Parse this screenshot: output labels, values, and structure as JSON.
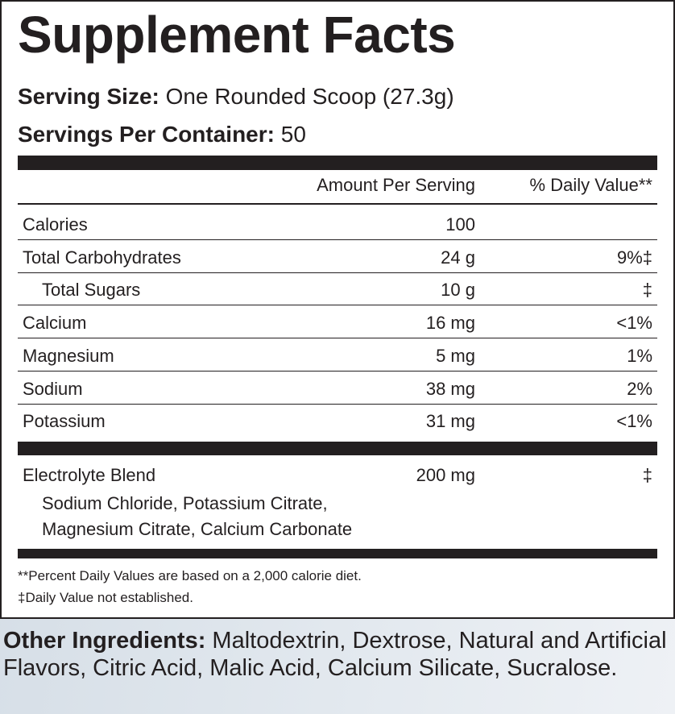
{
  "title": "Supplement Facts",
  "serving_size": {
    "label": "Serving Size:",
    "value": " One Rounded Scoop (27.3g)"
  },
  "servings_per_container": {
    "label": "Servings Per Container:",
    "value": " 50"
  },
  "header": {
    "amount": "Amount Per Serving",
    "dv": "% Daily Value**"
  },
  "rows": [
    {
      "name": "Calories",
      "amount": "100",
      "dv": ""
    },
    {
      "name": "Total Carbohydrates",
      "amount": "24 g",
      "dv": "9%‡"
    },
    {
      "name": "Total Sugars",
      "amount": "10 g",
      "dv": "‡"
    },
    {
      "name": "Calcium",
      "amount": "16 mg",
      "dv": "<1%"
    },
    {
      "name": "Magnesium",
      "amount": "5 mg",
      "dv": "1%"
    },
    {
      "name": "Sodium",
      "amount": "38 mg",
      "dv": "2%"
    },
    {
      "name": "Potassium",
      "amount": "31 mg",
      "dv": "<1%"
    }
  ],
  "blend": {
    "name": "Electrolyte Blend",
    "amount": "200 mg",
    "dv": "‡",
    "line1": "Sodium Chloride, Potassium Citrate,",
    "line2": "Magnesium Citrate, Calcium Carbonate"
  },
  "footnotes": [
    "**Percent Daily Values are based on a 2,000 calorie diet.",
    "‡Daily Value not established."
  ],
  "other_ingredients": {
    "label": "Other Ingredients:",
    "value": " Maltodextrin, Dextrose, Natural and Artificial Flavors, Citric Acid, Malic Acid, Calcium Silicate, Sucralose."
  }
}
